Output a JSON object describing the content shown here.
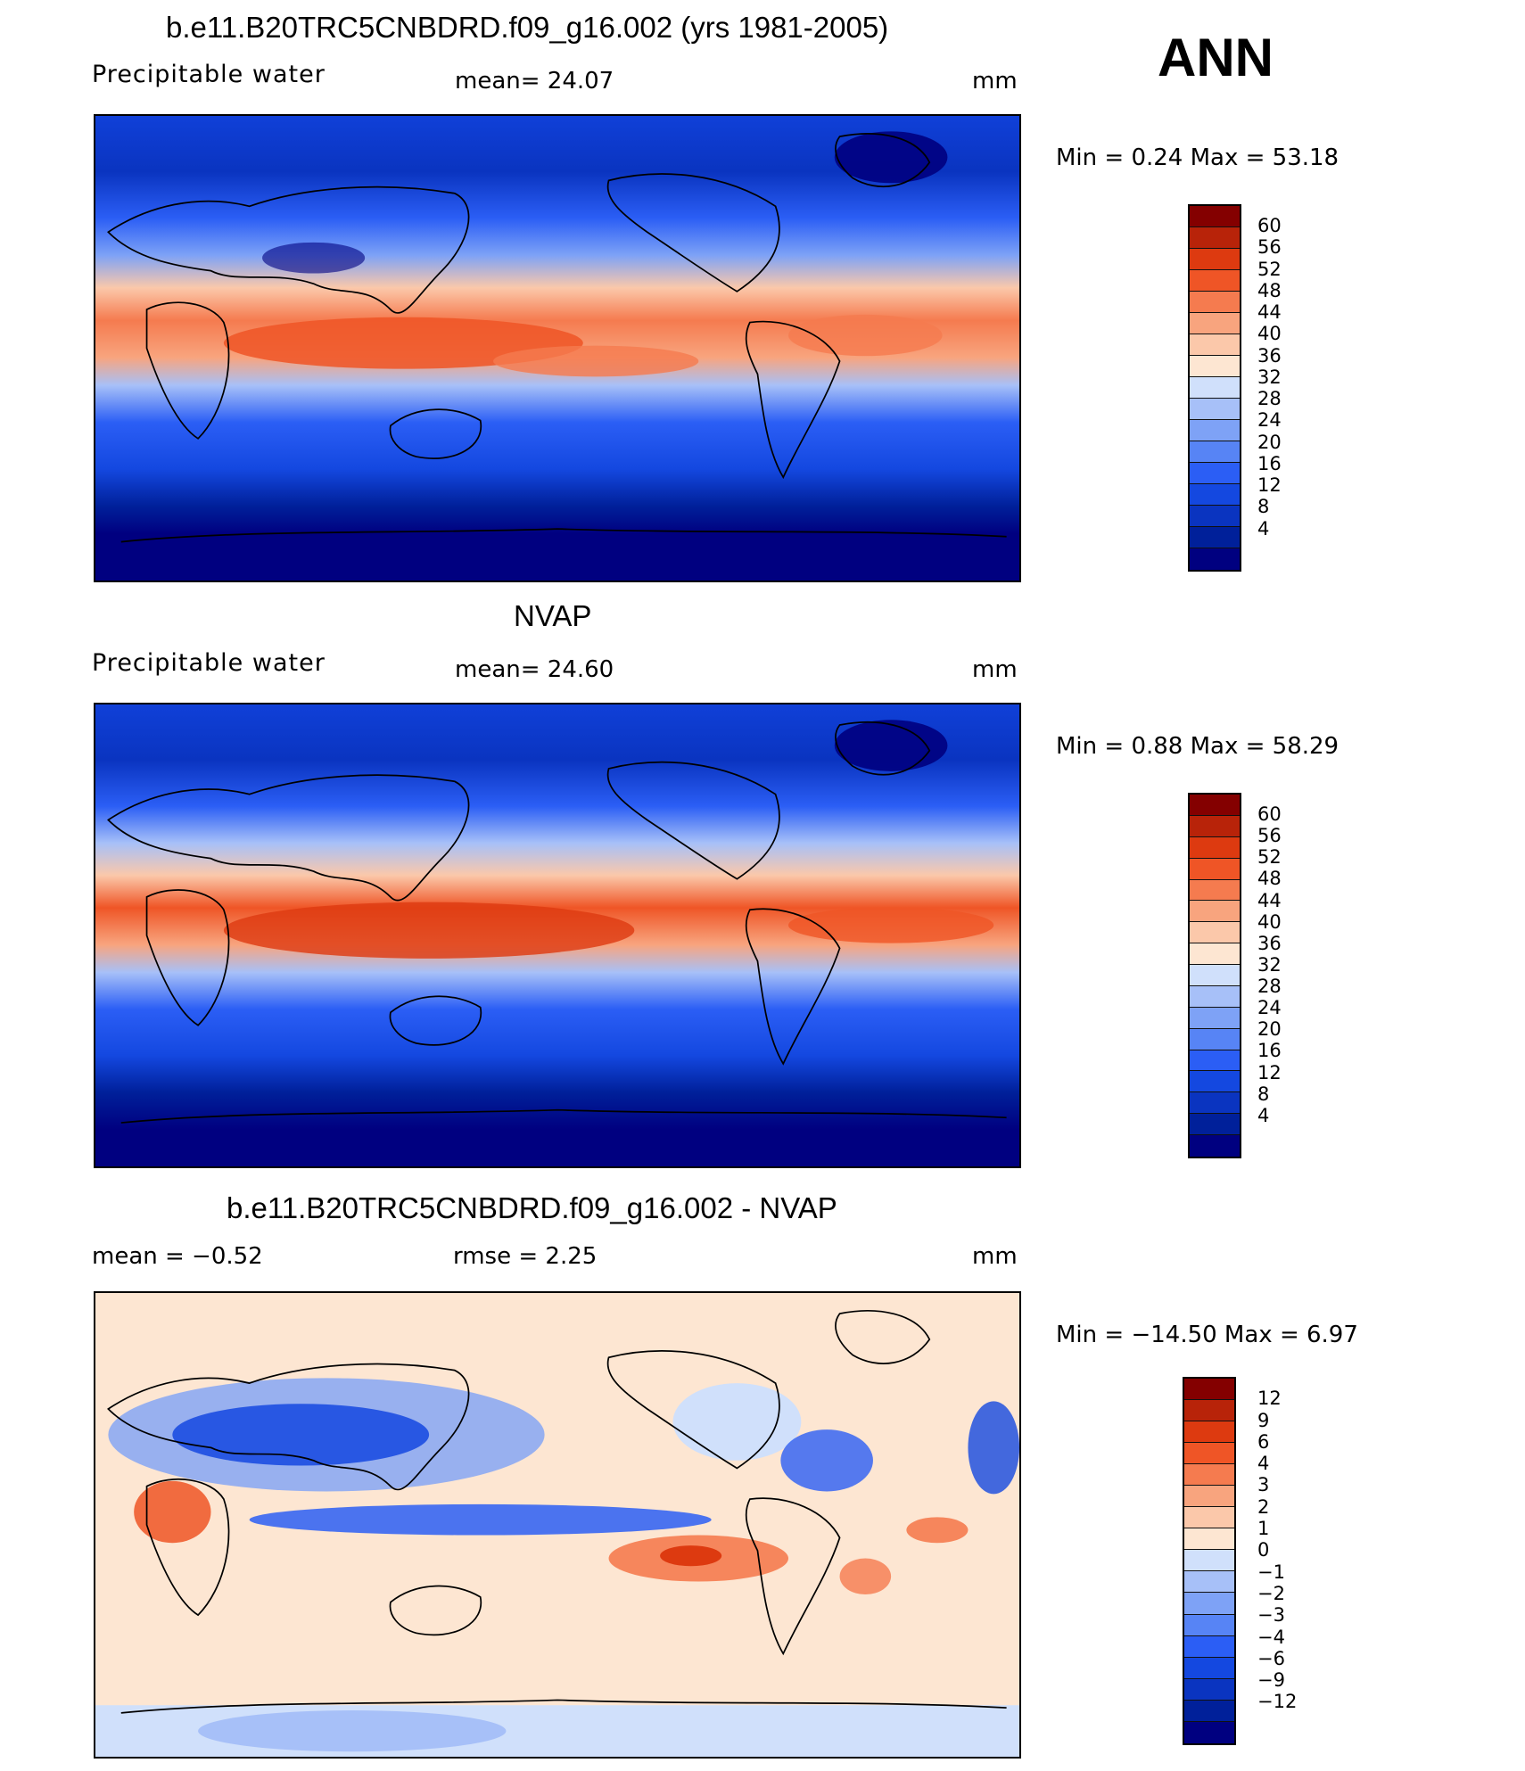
{
  "header": {
    "season": "ANN"
  },
  "colors": {
    "abs_scale": [
      "#000080",
      "#00209a",
      "#0a34c0",
      "#1448e0",
      "#2b5ef5",
      "#5784f5",
      "#7ea2f6",
      "#a7c0f8",
      "#d0e0fb",
      "#fde6d2",
      "#fbc8aa",
      "#f8a47e",
      "#f57b4f",
      "#ef5526",
      "#dd3a10",
      "#b82309",
      "#840000"
    ],
    "diff_scale": [
      "#000080",
      "#00209a",
      "#0a34c0",
      "#1448e0",
      "#2b5ef5",
      "#5784f5",
      "#7ea2f6",
      "#a7c0f8",
      "#d0e0fb",
      "#fde6d2",
      "#fbc8aa",
      "#f8a47e",
      "#f57b4f",
      "#ef5526",
      "#dd3a10",
      "#b82309",
      "#840000"
    ]
  },
  "panels": [
    {
      "title": "b.e11.B20TRC5CNBDRD.f09_g16.002 (yrs 1981-2005)",
      "variable": "Precipitable  water",
      "stat1": "mean=   24.07",
      "units": "mm",
      "minmax": "Min  =     0.24  Max  =    53.18",
      "colorbar_labels": [
        "60",
        "56",
        "52",
        "48",
        "44",
        "40",
        "36",
        "32",
        "28",
        "24",
        "20",
        "16",
        "12",
        "8",
        "4"
      ]
    },
    {
      "title": "NVAP",
      "variable": "Precipitable  water",
      "stat1": "mean=   24.60",
      "units": "mm",
      "minmax": "Min  =     0.88  Max  =    58.29",
      "colorbar_labels": [
        "60",
        "56",
        "52",
        "48",
        "44",
        "40",
        "36",
        "32",
        "28",
        "24",
        "20",
        "16",
        "12",
        "8",
        "4"
      ]
    },
    {
      "title": "b.e11.B20TRC5CNBDRD.f09_g16.002 - NVAP",
      "stat_left": "mean  =    −0.52",
      "stat_mid": "rmse  =     2.25",
      "units": "mm",
      "minmax": "Min  =  −14.50  Max  =     6.97",
      "colorbar_labels": [
        "12",
        "9",
        "6",
        "4",
        "3",
        "2",
        "1",
        "0",
        "−1",
        "−2",
        "−3",
        "−4",
        "−6",
        "−9",
        "−12"
      ]
    }
  ]
}
